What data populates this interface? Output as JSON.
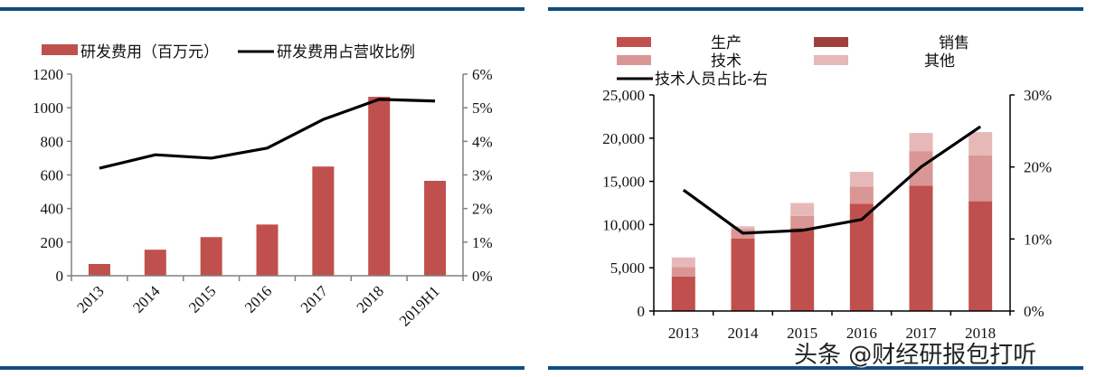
{
  "left_chart": {
    "legend": {
      "bar_label": "研发费用（百万元）",
      "line_label": "研发费用占营收比例"
    }
  },
  "right_chart": {
    "legend": {
      "production": "生产",
      "sales": "销售",
      "technical": "技术",
      "other": "其他",
      "line_label": "技术人员占比-右"
    }
  },
  "watermark": "头条 @财经研报包打听",
  "colors": {
    "rule": "#0f4c81",
    "bar_main": "#c0504d",
    "sales": "#a0403e",
    "technical": "#d99694",
    "other": "#e6b9b8",
    "line": "#000000",
    "axis_left": "#808080",
    "axis_right": "#000000"
  },
  "chart_data": [
    {
      "type": "bar+line",
      "title": "",
      "categories": [
        "2013",
        "2014",
        "2015",
        "2016",
        "2017",
        "2018",
        "2019H1"
      ],
      "series": [
        {
          "name": "研发费用（百万元）",
          "type": "bar",
          "axis": "left",
          "values": [
            70,
            155,
            230,
            305,
            650,
            1065,
            565
          ]
        },
        {
          "name": "研发费用占营收比例",
          "type": "line",
          "axis": "right",
          "values": [
            0.032,
            0.036,
            0.035,
            0.038,
            0.0465,
            0.0525,
            0.052
          ]
        }
      ],
      "y_left": {
        "ylim": [
          0,
          1200
        ],
        "ticks": [
          "0",
          "200",
          "400",
          "600",
          "800",
          "1000",
          "1200"
        ]
      },
      "y_right": {
        "ylim": [
          0,
          0.06
        ],
        "ticks": [
          "0%",
          "1%",
          "2%",
          "3%",
          "4%",
          "5%",
          "6%"
        ]
      },
      "xlabel": "",
      "ylabel": "",
      "x_tick_rotation": -45,
      "legend_position": "top",
      "grid": false
    },
    {
      "type": "stacked_bar+line",
      "title": "",
      "categories": [
        "2013",
        "2014",
        "2015",
        "2016",
        "2017",
        "2018"
      ],
      "series": [
        {
          "name": "生产",
          "type": "bar",
          "axis": "left",
          "values": [
            4000,
            8400,
            9600,
            12400,
            14500,
            12700
          ]
        },
        {
          "name": "销售",
          "type": "bar",
          "axis": "left",
          "values": [
            0,
            0,
            0,
            0,
            0,
            0
          ]
        },
        {
          "name": "技术",
          "type": "bar",
          "axis": "left",
          "values": [
            1100,
            1100,
            1400,
            2000,
            4000,
            5300
          ]
        },
        {
          "name": "其他",
          "type": "bar",
          "axis": "left",
          "values": [
            1100,
            300,
            1500,
            1700,
            2100,
            2700
          ]
        },
        {
          "name": "技术人员占比-右",
          "type": "line",
          "axis": "right",
          "values": [
            0.168,
            0.108,
            0.112,
            0.127,
            0.2,
            0.256
          ]
        }
      ],
      "y_left": {
        "ylim": [
          0,
          25000
        ],
        "ticks": [
          "0",
          "5,000",
          "10,000",
          "15,000",
          "20,000",
          "25,000"
        ]
      },
      "y_right": {
        "ylim": [
          0,
          0.3
        ],
        "ticks": [
          "0%",
          "10%",
          "20%",
          "30%"
        ]
      },
      "xlabel": "",
      "ylabel": "",
      "legend_position": "top",
      "grid": false
    }
  ]
}
